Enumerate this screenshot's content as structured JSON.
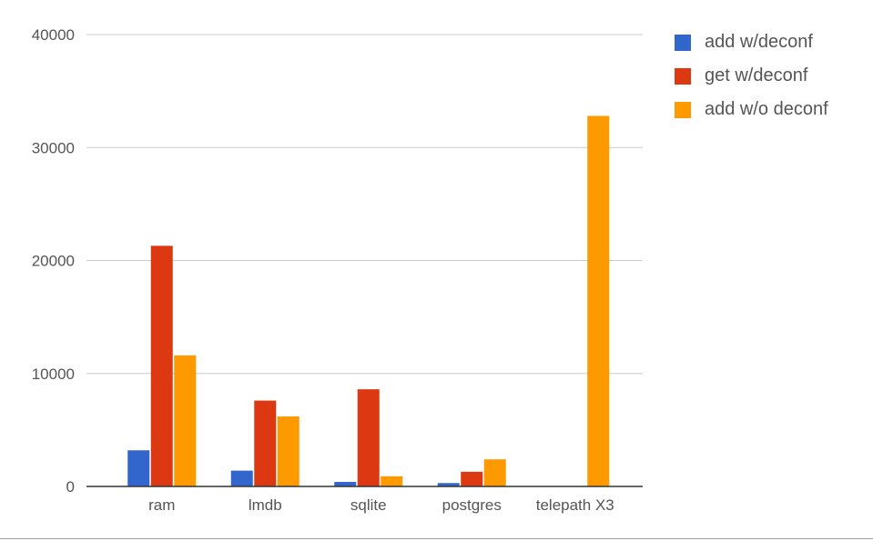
{
  "chart_data": {
    "type": "bar",
    "title": "",
    "xlabel": "",
    "ylabel": "",
    "categories": [
      "ram",
      "lmdb",
      "sqlite",
      "postgres",
      "telepath X3"
    ],
    "series": [
      {
        "name": "add w/deconf",
        "color": "#3366CC",
        "values": [
          3200,
          1400,
          400,
          300,
          0
        ]
      },
      {
        "name": "get w/deconf",
        "color": "#DC3912",
        "values": [
          21300,
          7600,
          8600,
          1300,
          0
        ]
      },
      {
        "name": "add w/o deconf",
        "color": "#FF9900",
        "values": [
          11600,
          6200,
          900,
          2400,
          32800
        ]
      }
    ],
    "ylim": [
      0,
      40000
    ],
    "yticks": [
      0,
      10000,
      20000,
      30000,
      40000
    ],
    "grid": true,
    "legend_position": "top-right"
  }
}
